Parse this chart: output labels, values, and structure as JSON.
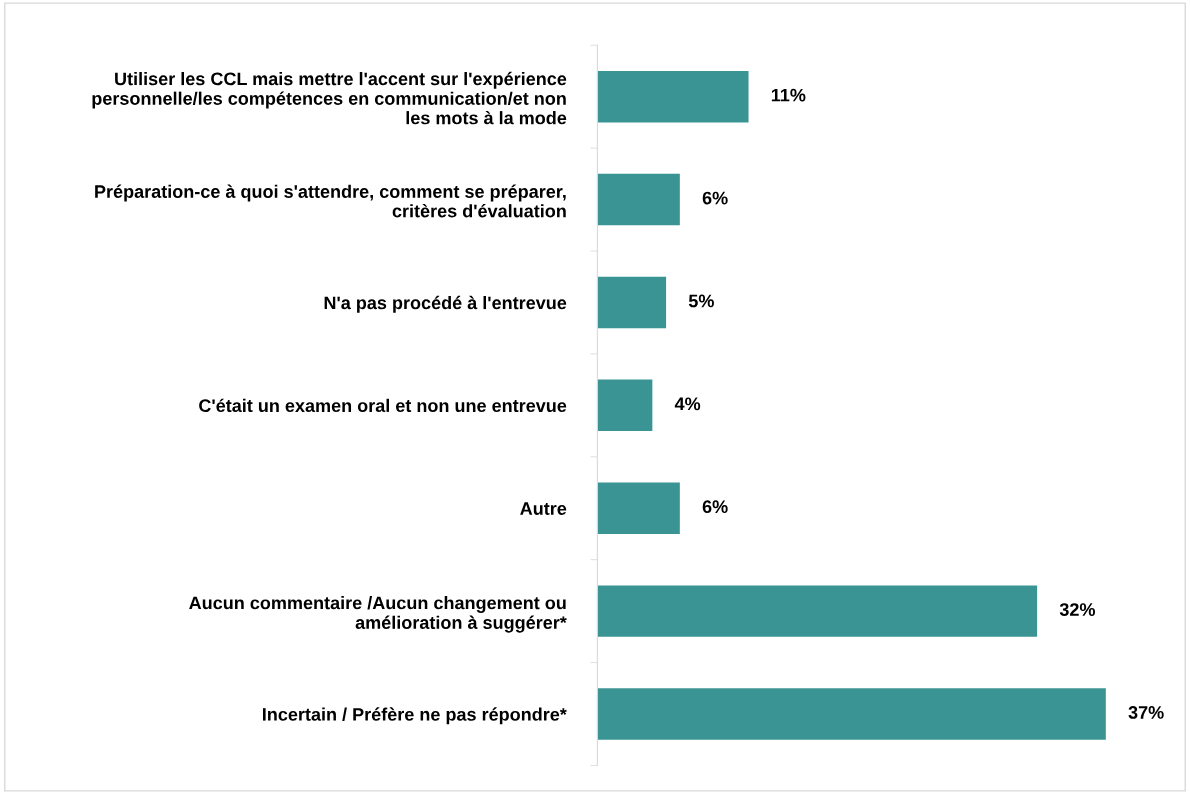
{
  "chart_data": {
    "type": "bar",
    "orientation": "horizontal",
    "categories": [
      "Utiliser les CCL mais mettre l'accent sur l'expérience\npersonnelle/les compétences en communication/et non\nles mots à la mode",
      "Préparation-ce à quoi s'attendre, comment se préparer,\ncritères d'évaluation",
      "N'a pas procédé à l'entrevue",
      "C'était un examen oral et non une entrevue",
      "Autre",
      "Aucun commentaire /Aucun changement ou\namélioration à suggérer*",
      "Incertain / Préfère ne pas répondre*"
    ],
    "values": [
      11,
      6,
      5,
      4,
      6,
      32,
      37
    ],
    "value_labels": [
      "11%",
      "6%",
      "5%",
      "4%",
      "6%",
      "32%",
      "37%"
    ],
    "color": "#3a9494",
    "grid": false,
    "legend": false
  }
}
